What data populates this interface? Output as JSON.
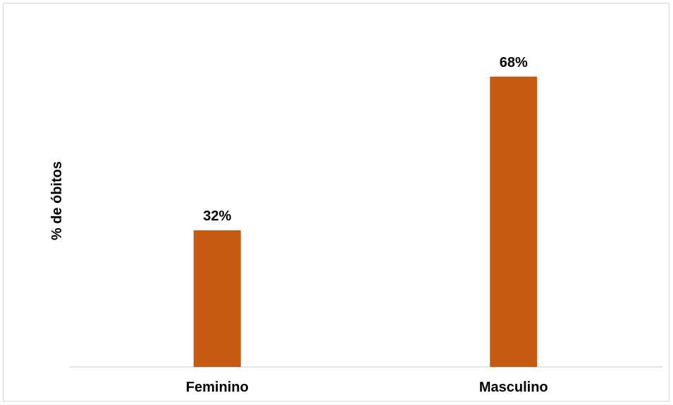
{
  "chart_data": {
    "type": "bar",
    "title": "",
    "xlabel": "",
    "ylabel": "% de óbitos",
    "categories": [
      "Feminino",
      "Masculino"
    ],
    "values": [
      32,
      68
    ],
    "data_labels": [
      "32%",
      "68%"
    ],
    "ylim": [
      0,
      80
    ],
    "grid": false,
    "legend": "none",
    "bar_color": "#c55a11",
    "axis_color": "#d9d9d9"
  }
}
